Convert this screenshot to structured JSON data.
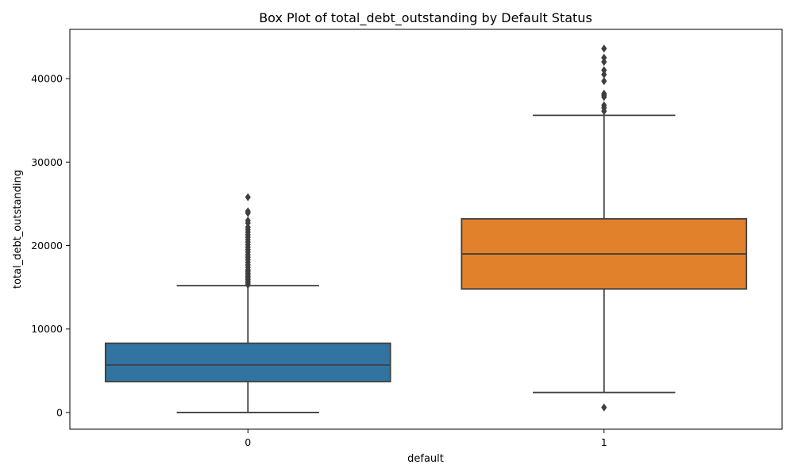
{
  "chart_data": {
    "type": "box",
    "title": "Box Plot of total_debt_outstanding by Default Status",
    "xlabel": "default",
    "ylabel": "total_debt_outstanding",
    "categories": [
      "0",
      "1"
    ],
    "ylim": [
      -2000,
      45900
    ],
    "yticks": [
      0,
      10000,
      20000,
      30000,
      40000
    ],
    "ytick_labels": [
      "0",
      "10000",
      "20000",
      "30000",
      "40000"
    ],
    "grid": false,
    "legend": "none",
    "line_color": "#3f3f3f",
    "boxes": [
      {
        "category": "0",
        "color": "#3274a1",
        "whisker_low": 0,
        "q1": 3700,
        "median": 5700,
        "q3": 8300,
        "whisker_high": 15200,
        "outliers": [
          15300,
          15500,
          15700,
          15900,
          16100,
          16300,
          16500,
          16700,
          16900,
          17100,
          17400,
          17700,
          18000,
          18300,
          18600,
          18900,
          19200,
          19500,
          19800,
          20100,
          20400,
          20700,
          21000,
          21300,
          21600,
          21900,
          22200,
          22700,
          23000,
          23900,
          24100,
          25800
        ]
      },
      {
        "category": "1",
        "color": "#e1812c",
        "whisker_low": 2400,
        "q1": 14800,
        "median": 19000,
        "q3": 23200,
        "whisker_high": 35600,
        "outliers": [
          600,
          36100,
          36500,
          36800,
          37800,
          38000,
          38200,
          39700,
          40500,
          41000,
          42000,
          42500,
          43600
        ]
      }
    ]
  }
}
